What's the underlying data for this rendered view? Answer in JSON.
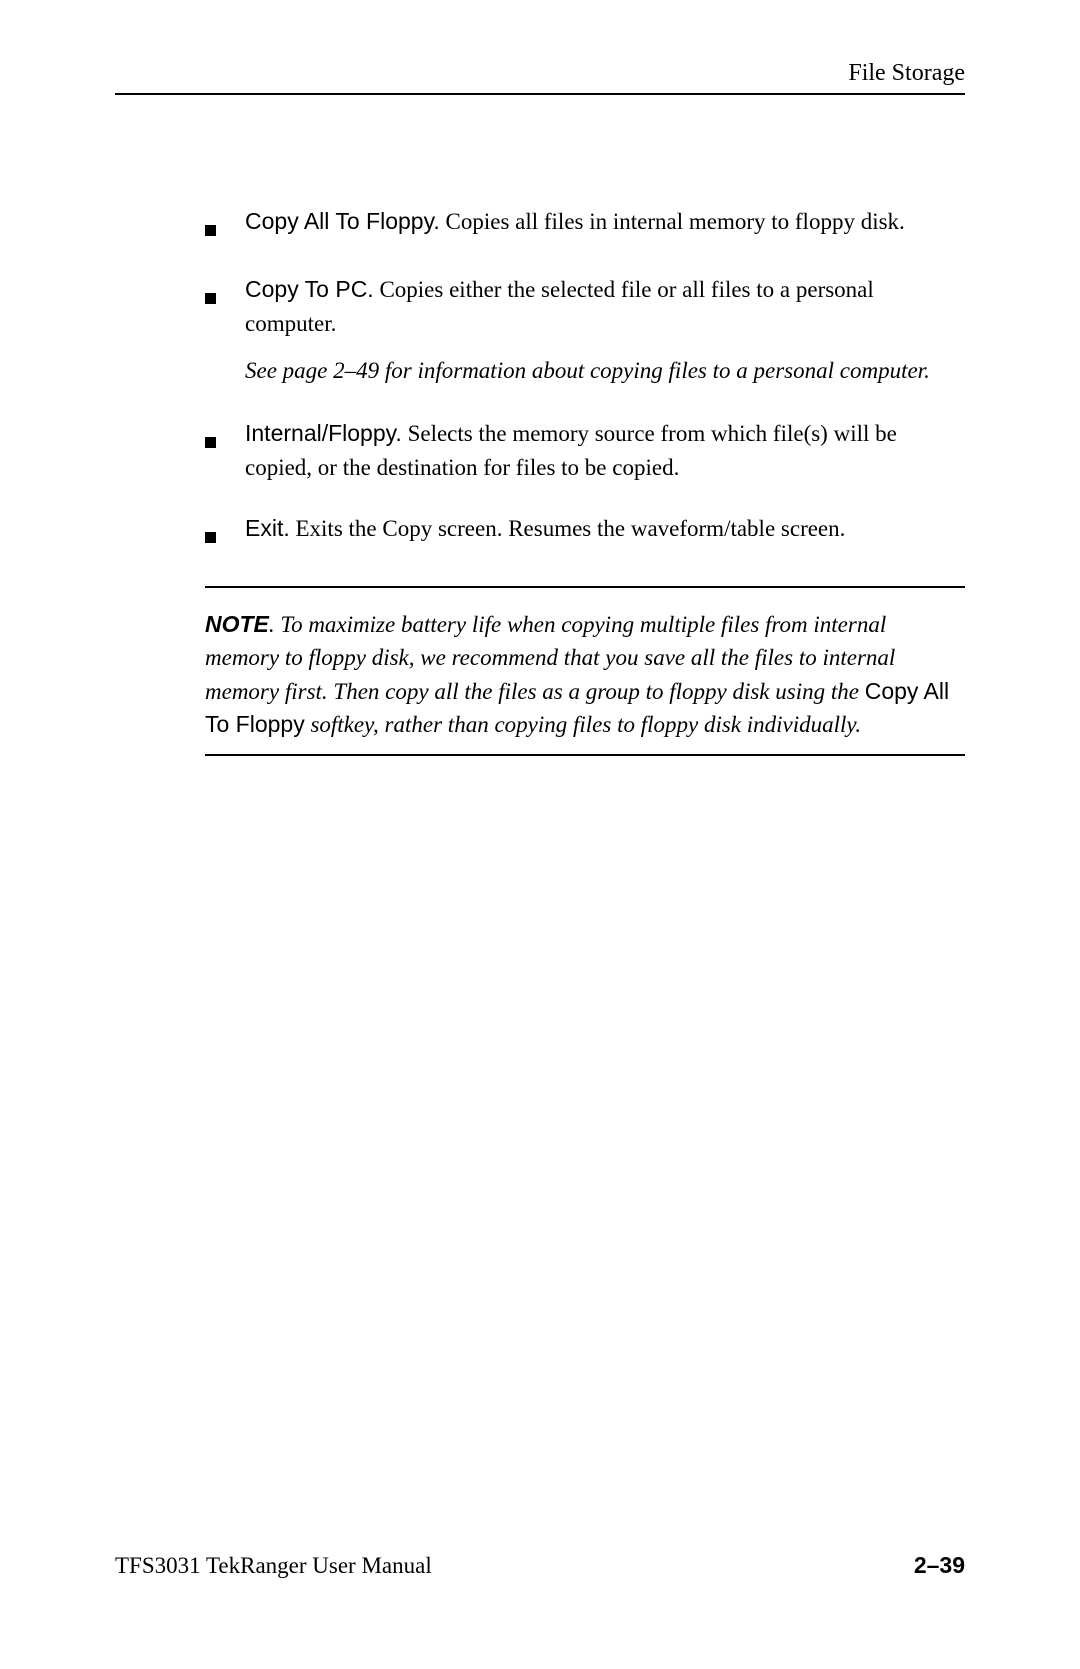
{
  "header": {
    "title": "File Storage"
  },
  "bullets": [
    {
      "term": "Copy All To Floppy.",
      "desc": " Copies all files in internal memory to floppy disk."
    },
    {
      "term": "Copy To PC.",
      "desc": " Copies either the selected file or all files to a personal computer.",
      "see": "See page 2–49 for information about copying files to a personal computer."
    },
    {
      "term": "Internal/Floppy.",
      "desc": " Selects the memory source from which file(s) will be copied, or the destination for files to be copied."
    },
    {
      "term": "Exit.",
      "desc": " Exits the Copy screen. Resumes the waveform/table screen."
    }
  ],
  "note": {
    "label": "NOTE",
    "part1": ". To maximize battery life when copying multiple files from internal memory to floppy disk, we recommend that you save all the files to internal memory first. Then copy all the files as a group to floppy disk using the ",
    "softkey": "Copy All To Floppy",
    "part2": " softkey, rather than copying files to floppy disk individually."
  },
  "footer": {
    "left": "TFS3031 TekRanger User Manual",
    "right": "2–39"
  }
}
